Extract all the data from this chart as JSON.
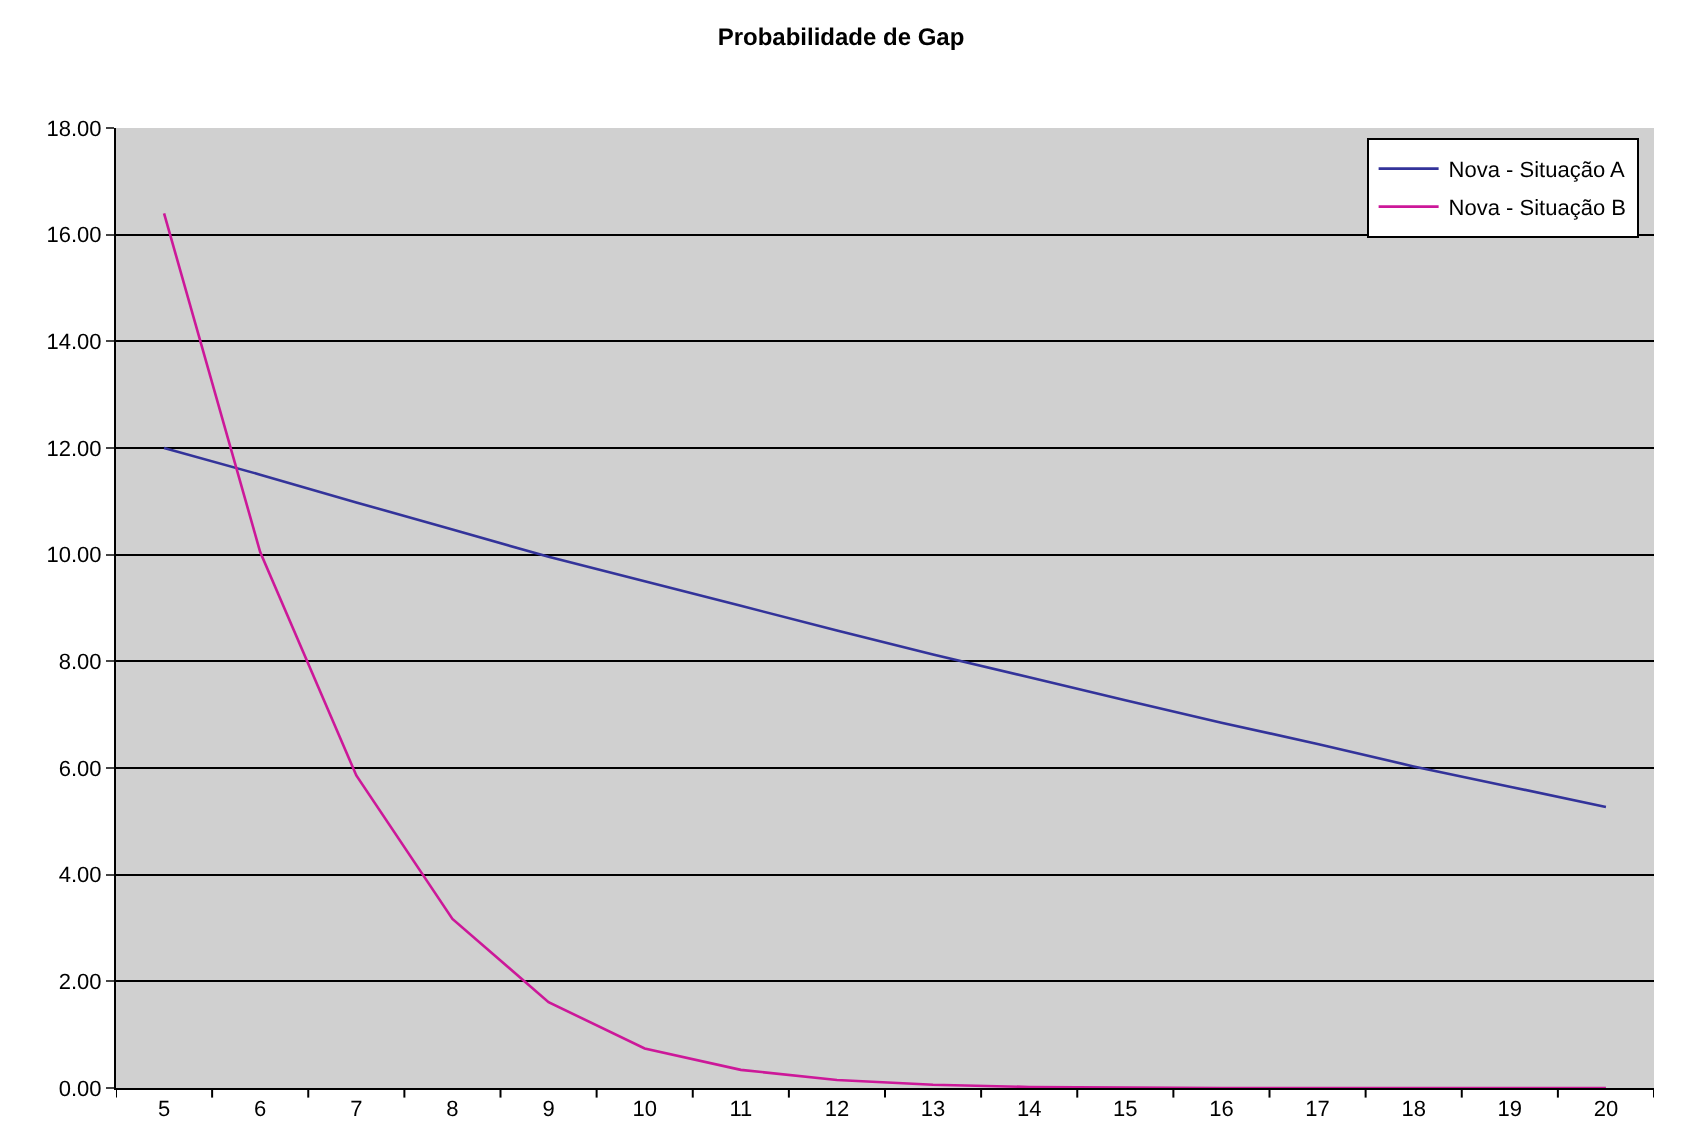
{
  "chart_data": {
    "type": "line",
    "title": "Probabilidade de Gap",
    "categories": [
      "5",
      "6",
      "7",
      "8",
      "9",
      "10",
      "11",
      "12",
      "13",
      "14",
      "15",
      "16",
      "17",
      "18",
      "19",
      "20"
    ],
    "series": [
      {
        "name": "Nova - Situação A",
        "color": "#33339a",
        "values": [
          12.0,
          11.5,
          10.98,
          10.47,
          9.96,
          9.5,
          9.04,
          8.58,
          8.13,
          7.7,
          7.27,
          6.85,
          6.45,
          6.03,
          5.65,
          5.27
        ]
      },
      {
        "name": "Nova - Situação B",
        "color": "#cc1899",
        "values": [
          16.4,
          10.05,
          5.86,
          3.17,
          1.61,
          0.74,
          0.34,
          0.15,
          0.06,
          0.02,
          0.01,
          0,
          0,
          0,
          0,
          0
        ]
      }
    ],
    "ylim": [
      0,
      18
    ],
    "yticks": [
      {
        "value": 0,
        "label": "0.00"
      },
      {
        "value": 2,
        "label": "2.00"
      },
      {
        "value": 4,
        "label": "4.00"
      },
      {
        "value": 6,
        "label": "6.00"
      },
      {
        "value": 8,
        "label": "8.00"
      },
      {
        "value": 10,
        "label": "10.00"
      },
      {
        "value": 12,
        "label": "12.00"
      },
      {
        "value": 14,
        "label": "14.00"
      },
      {
        "value": 16,
        "label": "16.00"
      },
      {
        "value": 18,
        "label": "18.00"
      }
    ],
    "grid": "y",
    "legend": "top right",
    "marker": "none",
    "line_style": "solid"
  }
}
